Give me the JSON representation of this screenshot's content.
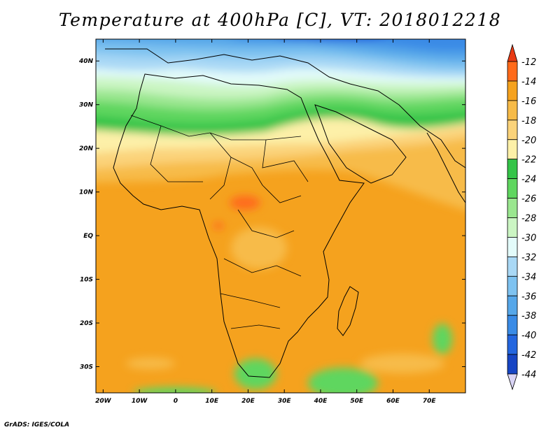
{
  "title": "Temperature at 400hPa [C], VT: 2018012218",
  "footer": "GrADS: IGES/COLA",
  "map": {
    "lon_range": [
      -22,
      80
    ],
    "lat_range": [
      -36,
      45
    ],
    "lat_ticks": [
      {
        "lat": 40,
        "label": "40N"
      },
      {
        "lat": 30,
        "label": "30N"
      },
      {
        "lat": 20,
        "label": "20N"
      },
      {
        "lat": 10,
        "label": "10N"
      },
      {
        "lat": 0,
        "label": "EQ"
      },
      {
        "lat": -10,
        "label": "10S"
      },
      {
        "lat": -20,
        "label": "20S"
      },
      {
        "lat": -30,
        "label": "30S"
      }
    ],
    "lon_ticks": [
      {
        "lon": -20,
        "label": "20W"
      },
      {
        "lon": -10,
        "label": "10W"
      },
      {
        "lon": 0,
        "label": "0"
      },
      {
        "lon": 10,
        "label": "10E"
      },
      {
        "lon": 20,
        "label": "20E"
      },
      {
        "lon": 30,
        "label": "30E"
      },
      {
        "lon": 40,
        "label": "40E"
      },
      {
        "lon": 50,
        "label": "50E"
      },
      {
        "lon": 60,
        "label": "60E"
      },
      {
        "lon": 70,
        "label": "70E"
      }
    ]
  },
  "colorbar": {
    "levels": [
      "-12",
      "-14",
      "-16",
      "-18",
      "-20",
      "-22",
      "-24",
      "-26",
      "-28",
      "-30",
      "-32",
      "-34",
      "-36",
      "-38",
      "-40",
      "-42",
      "-44"
    ],
    "colors": [
      "#ff6a1a",
      "#f5a21e",
      "#f7bb48",
      "#fbd37a",
      "#fdf0a8",
      "#34c448",
      "#5fd65f",
      "#9ae68f",
      "#cbf5c3",
      "#e3fbfa",
      "#a9d8f5",
      "#7ec2f0",
      "#56a7e9",
      "#3a8be6",
      "#2466df",
      "#1745c4",
      "#0f1a85"
    ],
    "top_arrow_color": "#e83a14",
    "bottom_arrow_color": "#d9d4f5"
  }
}
